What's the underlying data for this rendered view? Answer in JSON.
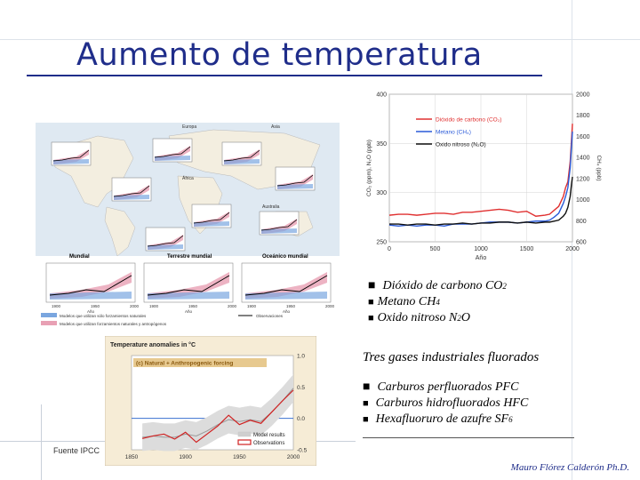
{
  "slide": {
    "title": "Aumento de temperatura",
    "source": "Fuente IPCC",
    "author": "Mauro Flórez Calderón Ph.D."
  },
  "bullets_gases": [
    {
      "text": "Dióxido de carbono CO",
      "sub": "2"
    },
    {
      "text": "Metano CH",
      "sub": "4"
    },
    {
      "text": "Oxido nitroso N",
      "sub": "2",
      "tail": "O"
    }
  ],
  "industrial": {
    "heading": "Tres gases industriales fluorados",
    "items": [
      {
        "text": "Carburos perfluorados PFC",
        "sub": ""
      },
      {
        "text": "Carburos hidrofluorados HFC",
        "sub": ""
      },
      {
        "text": "Hexafluoruro de azufre  SF",
        "sub": "6"
      }
    ]
  },
  "map_figure": {
    "panels": [
      "Mundial",
      "Terrestre mundial",
      "Oceánico mundial"
    ],
    "axis_label": "Año",
    "x_ticks": [
      "1900",
      "1950",
      "2000"
    ],
    "legend": [
      "Modelos que utilizan sólo forzamientos naturales",
      "Modelos que utilizan forzamientos naturales y antropógenos",
      "Observaciones"
    ],
    "regions": [
      "Europa",
      "Asia",
      "África",
      "Australia"
    ]
  },
  "chart_data": [
    {
      "type": "line",
      "title": "",
      "xlabel": "Año",
      "ylabel_left": "CO₂ (ppm), N₂O (ppb)",
      "ylabel_right": "CH₄ (ppb)",
      "xlim": [
        0,
        2000
      ],
      "ylim_left": [
        250,
        400
      ],
      "ylim_right": [
        600,
        2000
      ],
      "x_ticks": [
        0,
        500,
        1000,
        1500,
        2000
      ],
      "y_ticks_left": [
        250,
        300,
        350,
        400
      ],
      "y_ticks_right": [
        600,
        800,
        1000,
        1200,
        1400,
        1600,
        1800,
        2000
      ],
      "legend_position": "top-right",
      "x": [
        0,
        100,
        200,
        300,
        400,
        500,
        600,
        700,
        800,
        900,
        1000,
        1100,
        1200,
        1300,
        1400,
        1500,
        1600,
        1700,
        1750,
        1800,
        1850,
        1900,
        1925,
        1950,
        1975,
        1990,
        2000
      ],
      "series": [
        {
          "name": "Dióxido de carbono (CO₂)",
          "axis": "left",
          "color": "#e03030",
          "values": [
            277,
            278,
            278,
            277,
            278,
            279,
            279,
            278,
            280,
            280,
            281,
            282,
            283,
            282,
            280,
            281,
            276,
            277,
            278,
            282,
            286,
            296,
            305,
            311,
            331,
            354,
            370
          ]
        },
        {
          "name": "Metano (CH₄)",
          "axis": "left",
          "color": "#2a5ad8",
          "values": [
            267,
            266,
            267,
            266,
            267,
            267,
            266,
            268,
            268,
            268,
            269,
            270,
            270,
            270,
            269,
            270,
            271,
            271,
            272,
            275,
            279,
            289,
            296,
            305,
            325,
            348,
            362
          ]
        },
        {
          "name": "Oxido nitroso (N₂O)",
          "axis": "left",
          "color": "#111111",
          "values": [
            268,
            268,
            267,
            268,
            268,
            267,
            268,
            268,
            269,
            268,
            269,
            269,
            270,
            270,
            269,
            270,
            269,
            270,
            270,
            271,
            272,
            276,
            279,
            285,
            296,
            309,
            316
          ]
        }
      ]
    },
    {
      "type": "line",
      "title": "Temperature anomalies in °C",
      "subtitle": "(c) Natural + Anthropogenic forcing",
      "xlabel": "",
      "ylabel": "",
      "xlim": [
        1850,
        2000
      ],
      "ylim": [
        -0.5,
        1.0
      ],
      "x_ticks": [
        1850,
        1900,
        1950,
        2000
      ],
      "y_ticks": [
        -0.5,
        0.0,
        0.5,
        1.0
      ],
      "legend_position": "bottom-right",
      "x": [
        1860,
        1870,
        1880,
        1890,
        1900,
        1910,
        1920,
        1930,
        1940,
        1950,
        1960,
        1970,
        1980,
        1990,
        2000
      ],
      "series": [
        {
          "name": "Model results",
          "color": "#c8c8c8",
          "values": [
            -0.3,
            -0.28,
            -0.3,
            -0.3,
            -0.25,
            -0.28,
            -0.2,
            -0.1,
            -0.02,
            -0.05,
            -0.02,
            -0.05,
            0.1,
            0.28,
            0.48
          ]
        },
        {
          "name": "Observations",
          "color": "#d02020",
          "values": [
            -0.32,
            -0.28,
            -0.25,
            -0.33,
            -0.22,
            -0.38,
            -0.25,
            -0.12,
            0.05,
            -0.1,
            -0.03,
            -0.08,
            0.1,
            0.28,
            0.45
          ]
        }
      ]
    }
  ]
}
